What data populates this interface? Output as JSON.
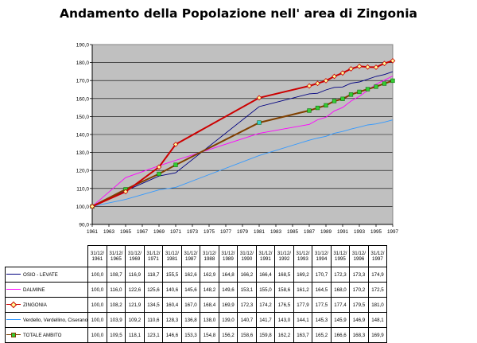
{
  "title": "Andamento della Popolazione nell' area di Zingonia",
  "chart_data": {
    "type": "line",
    "title": "Andamento della Popolazione nell' area di Zingonia",
    "ylim": [
      90,
      190
    ],
    "yticks": [
      "90,0",
      "100,0",
      "110,0",
      "120,0",
      "130,0",
      "140,0",
      "150,0",
      "160,0",
      "170,0",
      "180,0",
      "190,0"
    ],
    "xlim": [
      1961,
      1997
    ],
    "xticks": [
      "1961",
      "1963",
      "1965",
      "1967",
      "1969",
      "1971",
      "1973",
      "1975",
      "1977",
      "1979",
      "1981",
      "1983",
      "1985",
      "1987",
      "1989",
      "1991",
      "1993",
      "1995",
      "1997"
    ],
    "grid": true,
    "x": [
      1961,
      1965,
      1969,
      1971,
      1981,
      1987,
      1988,
      1989,
      1990,
      1991,
      1992,
      1993,
      1994,
      1995,
      1996,
      1997
    ],
    "date_labels": [
      "31/12/ 1961",
      "31/12/ 1965",
      "31/12/ 1969",
      "31/12/ 1971",
      "31/12/ 1981",
      "31/12/ 1987",
      "31/12/ 1988",
      "31/12/ 1989",
      "31/12/ 1990",
      "31/12/ 1991",
      "31/12/ 1992",
      "31/12/ 1993",
      "31/12/ 1994",
      "31/12/ 1995",
      "31/12/ 1996",
      "31/12/ 1997"
    ],
    "series": [
      {
        "name": "OSIO - LEVATE",
        "color": "#000080",
        "marker": "none",
        "values": [
          100.0,
          108.7,
          116.9,
          118.7,
          155.5,
          162.6,
          162.9,
          164.8,
          166.2,
          166.4,
          168.5,
          169.2,
          170.7,
          172.3,
          173.3,
          174.9
        ]
      },
      {
        "name": "DALMINE",
        "color": "#ff00ff",
        "marker": "none",
        "values": [
          100.0,
          116.0,
          122.6,
          125.6,
          140.6,
          145.6,
          148.2,
          149.6,
          153.1,
          155.0,
          158.6,
          161.2,
          164.5,
          168.0,
          170.2,
          172.5
        ]
      },
      {
        "name": "ZINGONIA",
        "color": "#cc0000",
        "marker": "diamond",
        "values": [
          100.0,
          108.2,
          121.9,
          134.5,
          160.4,
          167.0,
          168.4,
          169.9,
          172.3,
          174.2,
          176.5,
          177.9,
          177.5,
          177.4,
          179.5,
          181.0
        ]
      },
      {
        "name": "Verdello, Verdellino, Ciserano",
        "color": "#3399ff",
        "marker": "none",
        "values": [
          100.0,
          103.9,
          109.2,
          110.6,
          128.3,
          136.8,
          138.0,
          139.0,
          140.7,
          141.7,
          143.0,
          144.1,
          145.3,
          145.9,
          146.9,
          148.1
        ]
      },
      {
        "name": "TOTALE AMBITO",
        "color": "#804000",
        "marker": "square",
        "values": [
          100.0,
          109.5,
          118.1,
          123.1,
          146.6,
          153.3,
          154.8,
          156.2,
          158.6,
          159.8,
          162.2,
          163.7,
          165.2,
          166.6,
          168.3,
          169.9
        ]
      }
    ],
    "table": {
      "rows": [
        [
          "100,0",
          "108,7",
          "116,9",
          "118,7",
          "155,5",
          "162,6",
          "162,9",
          "164,8",
          "166,2",
          "166,4",
          "168,5",
          "169,2",
          "170,7",
          "172,3",
          "173,3",
          "174,9"
        ],
        [
          "100,0",
          "116,0",
          "122,6",
          "125,6",
          "140,6",
          "145,6",
          "148,2",
          "149,6",
          "153,1",
          "155,0",
          "158,6",
          "161,2",
          "164,5",
          "168,0",
          "170,2",
          "172,5"
        ],
        [
          "100,0",
          "108,2",
          "121,9",
          "134,5",
          "160,4",
          "167,0",
          "168,4",
          "169,9",
          "172,3",
          "174,2",
          "176,5",
          "177,9",
          "177,5",
          "177,4",
          "179,5",
          "181,0"
        ],
        [
          "100,0",
          "103,9",
          "109,2",
          "110,6",
          "128,3",
          "136,8",
          "138,0",
          "139,0",
          "140,7",
          "141,7",
          "143,0",
          "144,1",
          "145,3",
          "145,9",
          "146,9",
          "148,1"
        ],
        [
          "100,0",
          "109,5",
          "118,1",
          "123,1",
          "146,6",
          "153,3",
          "154,8",
          "156,2",
          "158,6",
          "159,8",
          "162,2",
          "163,7",
          "165,2",
          "166,6",
          "168,3",
          "169,9"
        ]
      ]
    }
  }
}
